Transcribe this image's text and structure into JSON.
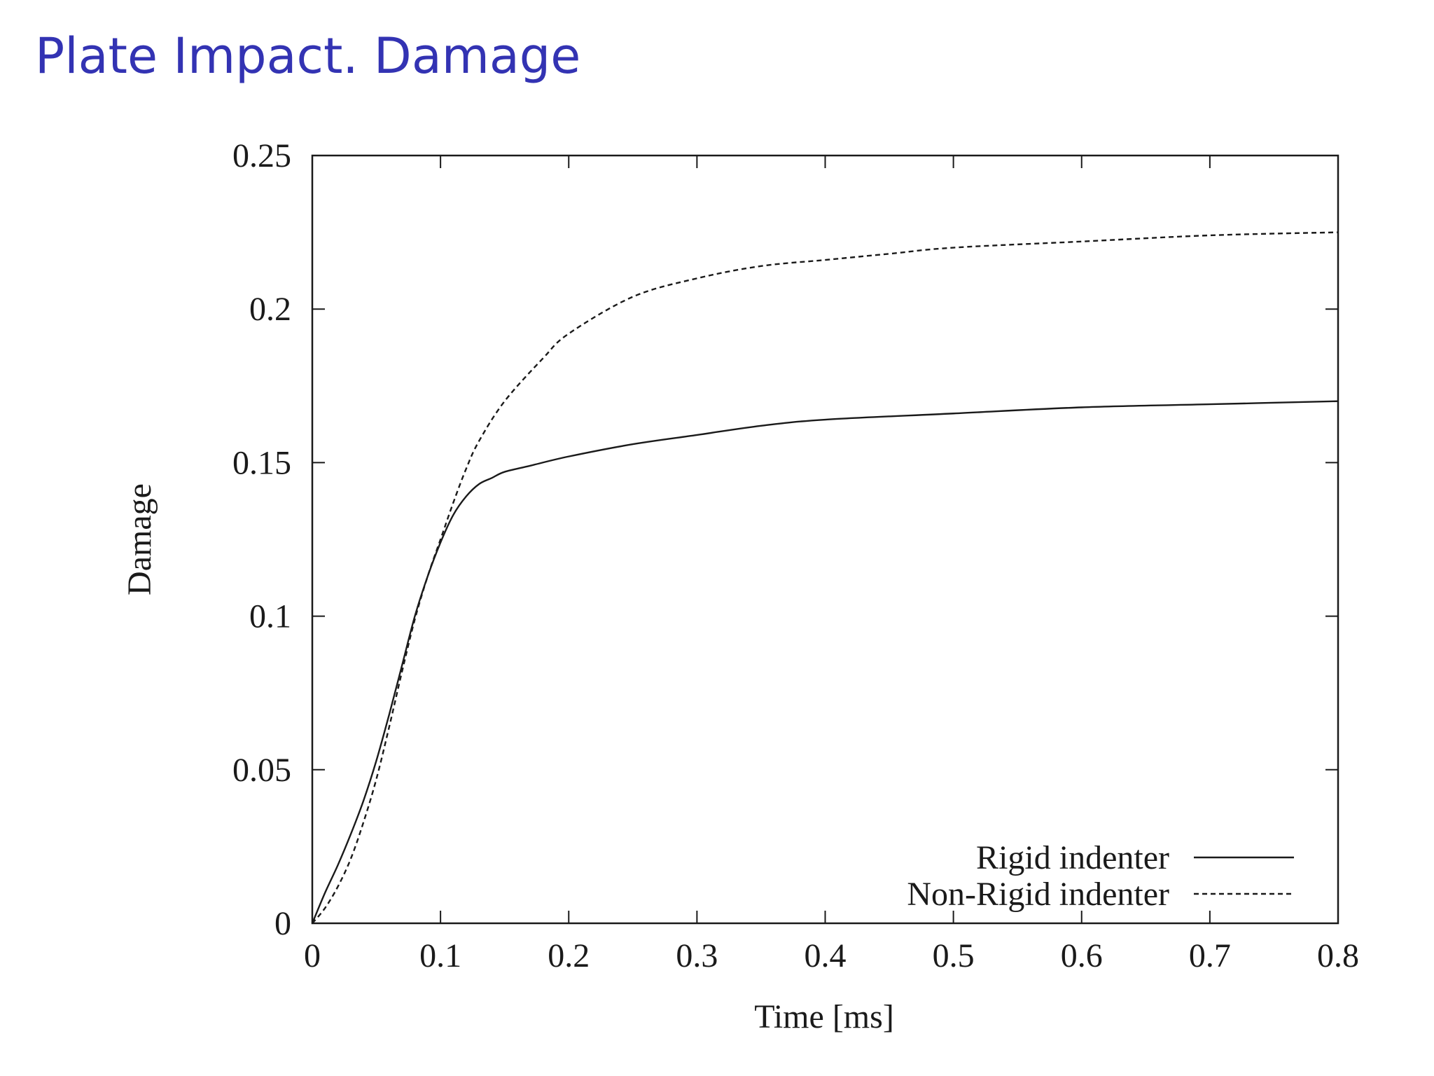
{
  "slide": {
    "title": "Plate Impact. Damage"
  },
  "colors": {
    "title": "#3333b3",
    "axis": "#1a1a1a",
    "series": "#1a1a1a"
  },
  "chart_data": {
    "type": "line",
    "title": "",
    "xlabel": "Time [ms]",
    "ylabel": "Damage",
    "xlim": [
      0,
      0.8
    ],
    "ylim": [
      0,
      0.25
    ],
    "xticks": [
      0,
      0.1,
      0.2,
      0.3,
      0.4,
      0.5,
      0.6,
      0.7,
      0.8
    ],
    "xtick_labels": [
      "0",
      "0.1",
      "0.2",
      "0.3",
      "0.4",
      "0.5",
      "0.6",
      "0.7",
      "0.8"
    ],
    "yticks": [
      0,
      0.05,
      0.1,
      0.15,
      0.2,
      0.25
    ],
    "ytick_labels": [
      "0",
      "0.05",
      "0.1",
      "0.15",
      "0.2",
      "0.25"
    ],
    "grid": false,
    "legend_position": "bottom-right",
    "series": [
      {
        "name": "Rigid indenter",
        "style": "solid",
        "x": [
          0,
          0.01,
          0.02,
          0.03,
          0.04,
          0.05,
          0.06,
          0.07,
          0.08,
          0.09,
          0.1,
          0.11,
          0.12,
          0.13,
          0.14,
          0.15,
          0.17,
          0.2,
          0.25,
          0.3,
          0.35,
          0.4,
          0.5,
          0.6,
          0.7,
          0.8
        ],
        "y": [
          0,
          0.01,
          0.019,
          0.029,
          0.04,
          0.053,
          0.068,
          0.084,
          0.1,
          0.113,
          0.124,
          0.133,
          0.139,
          0.143,
          0.145,
          0.147,
          0.149,
          0.152,
          0.156,
          0.159,
          0.162,
          0.164,
          0.166,
          0.168,
          0.169,
          0.17
        ]
      },
      {
        "name": "Non-Rigid indenter",
        "style": "dashed",
        "x": [
          0,
          0.01,
          0.02,
          0.03,
          0.04,
          0.05,
          0.06,
          0.07,
          0.08,
          0.09,
          0.1,
          0.11,
          0.12,
          0.13,
          0.15,
          0.18,
          0.2,
          0.25,
          0.3,
          0.35,
          0.4,
          0.45,
          0.5,
          0.6,
          0.7,
          0.8
        ],
        "y": [
          0,
          0.005,
          0.012,
          0.021,
          0.033,
          0.047,
          0.064,
          0.082,
          0.099,
          0.113,
          0.125,
          0.137,
          0.148,
          0.157,
          0.17,
          0.184,
          0.192,
          0.204,
          0.21,
          0.214,
          0.216,
          0.218,
          0.22,
          0.222,
          0.224,
          0.225
        ]
      }
    ]
  }
}
